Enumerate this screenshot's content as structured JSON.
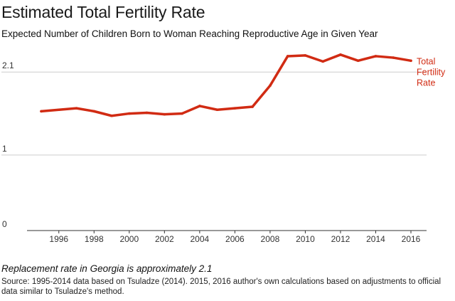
{
  "title": "Estimated Total Fertility Rate",
  "subtitle": "Expected Number of Children Born to Woman Reaching Reproductive Age in Given Year",
  "note": "Replacement rate in Georgia is approximately 2.1",
  "source": "Source: 1995-2014 data based on Tsuladze (2014). 2015, 2016 author's own calculations based on adjustments to official data similar to Tsuladze's method.",
  "colors": {
    "line": "#d12b13",
    "grid": "#cccccc",
    "axis": "#333333"
  },
  "chart_data": {
    "type": "line",
    "title": "Estimated Total Fertility Rate",
    "subtitle": "Expected Number of Children Born to Woman Reaching Reproductive Age in Given Year",
    "xlabel": "",
    "ylabel": "",
    "ylim": [
      0,
      2.3
    ],
    "xlim": [
      1995,
      2016
    ],
    "grid": true,
    "y_ticks": [
      "0",
      "1",
      "2.1"
    ],
    "y_tick_values": [
      0,
      1,
      2.1
    ],
    "x_ticks": [
      "1996",
      "1998",
      "2000",
      "2002",
      "2004",
      "2006",
      "2008",
      "2010",
      "2012",
      "2014",
      "2016"
    ],
    "x_tick_values": [
      1996,
      1998,
      2000,
      2002,
      2004,
      2006,
      2008,
      2010,
      2012,
      2014,
      2016
    ],
    "x": [
      1995,
      1996,
      1997,
      1998,
      1999,
      2000,
      2001,
      2002,
      2003,
      2004,
      2005,
      2006,
      2007,
      2008,
      2009,
      2010,
      2011,
      2012,
      2013,
      2014,
      2015,
      2016
    ],
    "series": [
      {
        "name": "Total Fertility Rate",
        "values": [
          1.58,
          1.6,
          1.62,
          1.58,
          1.52,
          1.55,
          1.56,
          1.54,
          1.55,
          1.65,
          1.6,
          1.62,
          1.64,
          1.92,
          2.31,
          2.32,
          2.24,
          2.33,
          2.25,
          2.31,
          2.29,
          2.25
        ]
      }
    ]
  }
}
